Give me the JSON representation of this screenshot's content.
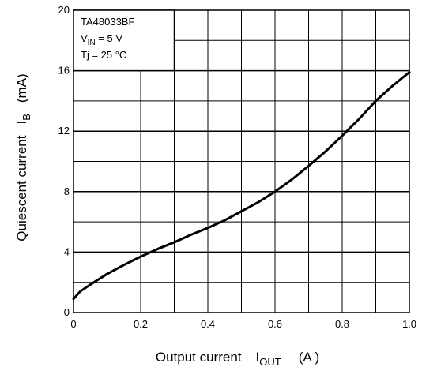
{
  "chart_data": {
    "type": "line",
    "title": "",
    "xlabel": "Output current",
    "xlabel_symbol": "I",
    "xlabel_symbol_sub": "OUT",
    "xlabel_unit": "(A )",
    "ylabel": "Quiescent current",
    "ylabel_symbol": "I",
    "ylabel_symbol_sub": "B",
    "ylabel_unit": "(mA)",
    "xlim": [
      0,
      1.0
    ],
    "ylim": [
      0,
      20
    ],
    "x_ticks": [
      "0",
      "0.2",
      "0.4",
      "0.6",
      "0.8",
      "1.0"
    ],
    "y_ticks": [
      "0",
      "4",
      "8",
      "12",
      "16",
      "20"
    ],
    "grid": true,
    "legend_box": {
      "position": "top-left",
      "part_number": "TA48033BF",
      "vin_label": "V",
      "vin_sub": "IN",
      "vin_value": " = 5 V",
      "tj_label": "Tj = 25 °C"
    },
    "series": [
      {
        "x": [
          0,
          0.02,
          0.05,
          0.1,
          0.15,
          0.2,
          0.25,
          0.3,
          0.35,
          0.4,
          0.45,
          0.5,
          0.55,
          0.6,
          0.65,
          0.7,
          0.75,
          0.8,
          0.85,
          0.9,
          0.95,
          1.0
        ],
        "y": [
          0.9,
          1.4,
          1.85,
          2.55,
          3.15,
          3.7,
          4.2,
          4.65,
          5.15,
          5.6,
          6.1,
          6.7,
          7.3,
          8.0,
          8.8,
          9.7,
          10.65,
          11.7,
          12.8,
          14.0,
          15.0,
          15.9
        ]
      }
    ],
    "colors": {
      "line": "#000000",
      "grid": "#000000",
      "background": "#ffffff"
    }
  }
}
